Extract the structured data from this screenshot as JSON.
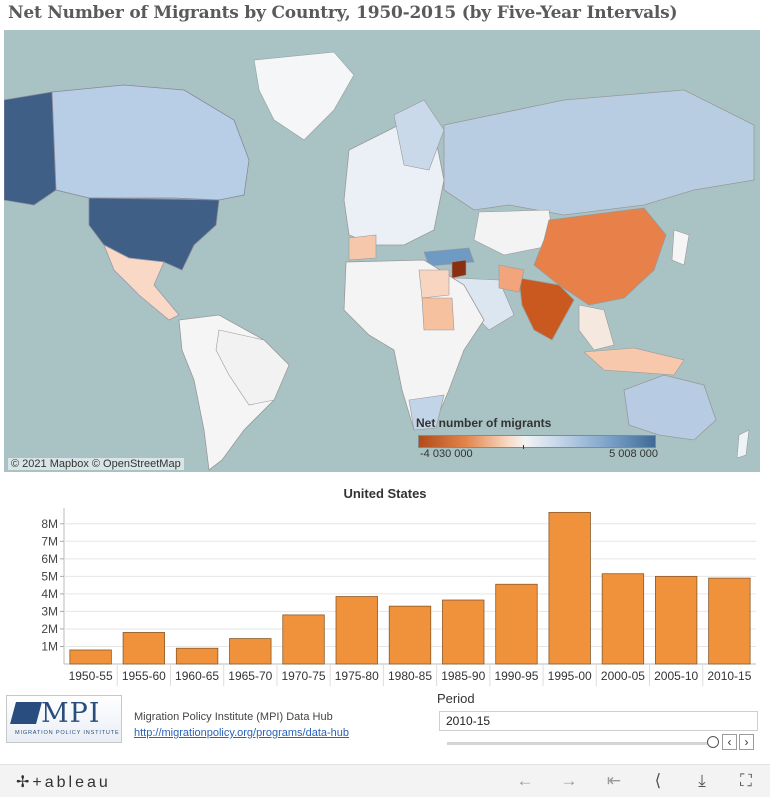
{
  "title": "Net Number of Migrants by Country, 1950-2015 (by Five-Year Intervals)",
  "map": {
    "attribution": "© 2021 Mapbox  © OpenStreetMap",
    "legend": {
      "title": "Net number of migrants",
      "min_label": "-4 030 000",
      "max_label": "5 008 000"
    },
    "colors": {
      "ocean": "#a9c3c5",
      "negative": "#e2854c",
      "strong_negative": "#b14b1b",
      "positive_light": "#c8d9ea",
      "positive_strong": "#3f6a96"
    }
  },
  "chart_data": {
    "type": "bar",
    "title": "United States",
    "categories": [
      "1950-55",
      "1955-60",
      "1960-65",
      "1965-70",
      "1970-75",
      "1975-80",
      "1980-85",
      "1985-90",
      "1990-95",
      "1995-00",
      "2000-05",
      "2005-10",
      "2010-15"
    ],
    "values": [
      0.8,
      1.8,
      0.9,
      1.45,
      2.8,
      3.85,
      3.3,
      3.65,
      4.55,
      8.65,
      5.15,
      5.0,
      4.9
    ],
    "ylim": [
      0,
      8.9
    ],
    "yticks": [
      1,
      2,
      3,
      4,
      5,
      6,
      7,
      8
    ],
    "ytick_labels": [
      "1M",
      "2M",
      "3M",
      "4M",
      "5M",
      "6M",
      "7M",
      "8M"
    ],
    "bar_color": "#f0923b",
    "grid": true
  },
  "footer": {
    "logo_text": "MPI",
    "logo_subtitle": "MIGRATION POLICY INSTITUTE",
    "source_line": "Migration Policy Institute (MPI) Data Hub",
    "source_link": "http://migrationpolicy.org/programs/data-hub"
  },
  "period": {
    "label": "Period",
    "selected": "2010-15",
    "prev_glyph": "‹",
    "next_glyph": "›"
  },
  "toolbar": {
    "logo": "✢+ableau",
    "undo_glyph": "←",
    "redo_glyph": "→",
    "revert_glyph": "⇤",
    "share_glyph": "⟨",
    "download_glyph": "⤓",
    "fullscreen_glyph": "⛶"
  }
}
